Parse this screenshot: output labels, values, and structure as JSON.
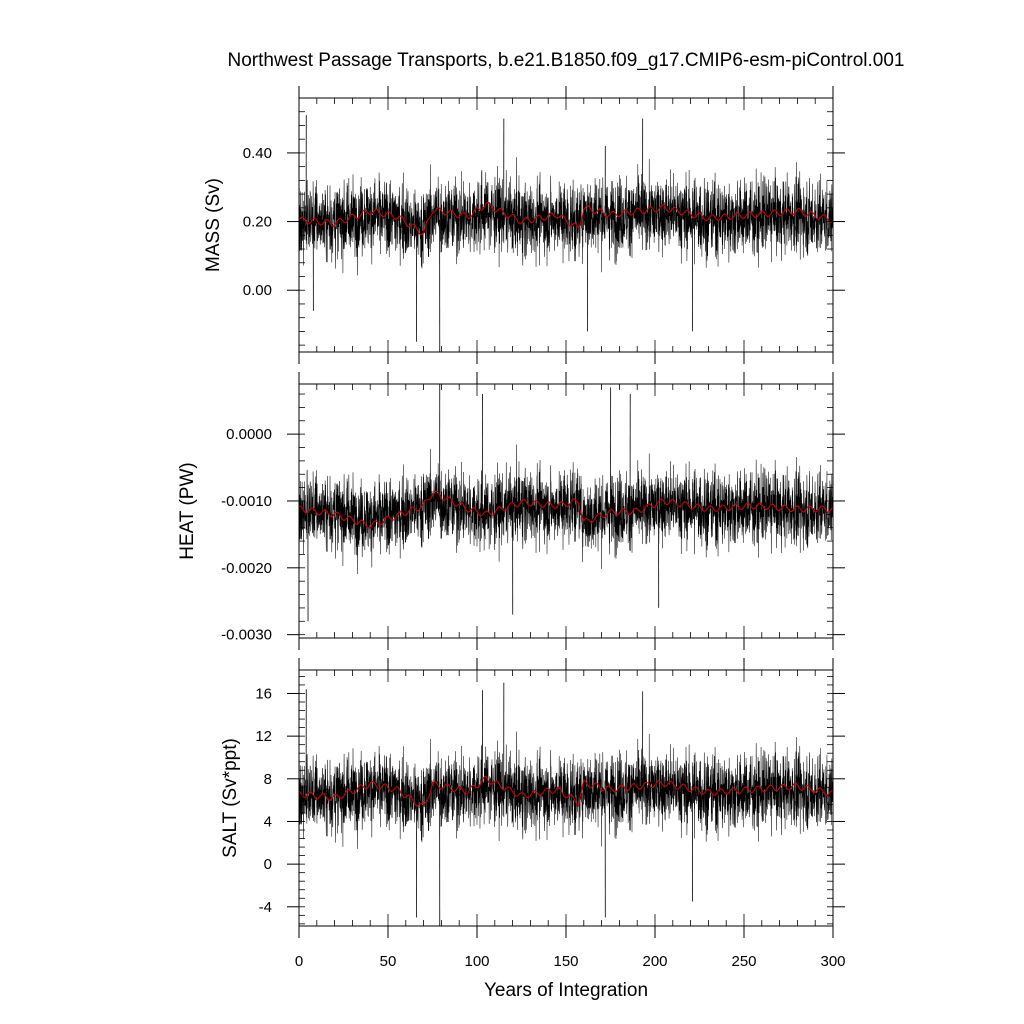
{
  "chart_data": {
    "type": "line",
    "title": "Northwest Passage Transports, b.e21.B1850.f09_g17.CMIP6-esm-piControl.001",
    "xlabel": "Years of Integration",
    "xlim": [
      0,
      300
    ],
    "xticks": [
      "0",
      "50",
      "100",
      "150",
      "200",
      "250",
      "300"
    ],
    "colors": {
      "raw": "#000000",
      "smoothed": "#cc0000"
    },
    "panels": [
      {
        "ylabel": "MASS (Sv)",
        "ylim": [
          -0.18,
          0.56
        ],
        "yticks": [
          "0.40",
          "0.20",
          "0.00"
        ],
        "ytick_values": [
          0.4,
          0.2,
          0.0
        ],
        "mean": 0.205,
        "raw_spread": 0.075,
        "smooth_anomalies": [
          [
            0,
            0.0
          ],
          [
            20,
            -0.01
          ],
          [
            40,
            0.025
          ],
          [
            55,
            0.01
          ],
          [
            70,
            -0.04
          ],
          [
            75,
            0.03
          ],
          [
            95,
            0.01
          ],
          [
            105,
            0.045
          ],
          [
            125,
            -0.005
          ],
          [
            145,
            0.015
          ],
          [
            157,
            -0.025
          ],
          [
            160,
            0.035
          ],
          [
            175,
            0.015
          ],
          [
            190,
            0.025
          ],
          [
            205,
            0.035
          ],
          [
            230,
            0.005
          ],
          [
            255,
            0.015
          ],
          [
            280,
            0.025
          ],
          [
            300,
            0.0
          ]
        ],
        "extremes": [
          [
            4,
            0.51
          ],
          [
            8,
            -0.06
          ],
          [
            66,
            -0.15
          ],
          [
            79,
            -0.18
          ],
          [
            115,
            0.5
          ],
          [
            162,
            -0.12
          ],
          [
            172,
            0.42
          ],
          [
            193,
            0.5
          ],
          [
            221,
            -0.12
          ]
        ]
      },
      {
        "ylabel": "HEAT (PW)",
        "ylim": [
          -0.00305,
          0.00075
        ],
        "yticks": [
          "0.0000",
          "-0.0010",
          "-0.0020",
          "-0.0030"
        ],
        "ytick_values": [
          0.0,
          -0.001,
          -0.002,
          -0.003
        ],
        "mean": -0.00112,
        "raw_spread": 0.00038,
        "smooth_anomalies": [
          [
            0,
            0.0
          ],
          [
            20,
            -8e-05
          ],
          [
            40,
            -0.00025
          ],
          [
            55,
            -0.0001
          ],
          [
            70,
            5e-05
          ],
          [
            75,
            0.00025
          ],
          [
            95,
            0.0
          ],
          [
            105,
            -8e-05
          ],
          [
            125,
            0.0001
          ],
          [
            145,
            5e-05
          ],
          [
            157,
            0.00012
          ],
          [
            160,
            -0.0002
          ],
          [
            175,
            -5e-05
          ],
          [
            190,
            -3e-05
          ],
          [
            205,
            0.00012
          ],
          [
            230,
            0.0
          ],
          [
            255,
            5e-05
          ],
          [
            280,
            0.0
          ],
          [
            300,
            0.0
          ]
        ],
        "extremes": [
          [
            5,
            -0.0028
          ],
          [
            79,
            0.00075
          ],
          [
            103,
            0.0006
          ],
          [
            120,
            -0.0027
          ],
          [
            175,
            0.0007
          ],
          [
            186,
            0.0006
          ],
          [
            202,
            -0.0026
          ]
        ]
      },
      {
        "ylabel": "SALT (Sv*ppt)",
        "ylim": [
          -5.8,
          18.2
        ],
        "yticks": [
          "16",
          "12",
          "8",
          "4",
          "0",
          "-4"
        ],
        "ytick_values": [
          16,
          12,
          8,
          4,
          0,
          -4
        ],
        "mean": 6.6,
        "raw_spread": 2.4,
        "smooth_anomalies": [
          [
            0,
            0.0
          ],
          [
            20,
            -0.4
          ],
          [
            40,
            0.9
          ],
          [
            55,
            0.4
          ],
          [
            70,
            -1.3
          ],
          [
            75,
            0.9
          ],
          [
            95,
            0.2
          ],
          [
            105,
            1.4
          ],
          [
            125,
            -0.2
          ],
          [
            145,
            0.4
          ],
          [
            157,
            -0.8
          ],
          [
            160,
            1.0
          ],
          [
            175,
            0.4
          ],
          [
            190,
            0.7
          ],
          [
            205,
            1.0
          ],
          [
            230,
            0.1
          ],
          [
            255,
            0.4
          ],
          [
            280,
            0.7
          ],
          [
            300,
            0.0
          ]
        ],
        "extremes": [
          [
            4,
            16.4
          ],
          [
            66,
            -5.0
          ],
          [
            79,
            -5.8
          ],
          [
            103,
            16.3
          ],
          [
            115,
            17.0
          ],
          [
            172,
            -5.0
          ],
          [
            193,
            16.2
          ],
          [
            221,
            -3.5
          ]
        ]
      }
    ]
  }
}
